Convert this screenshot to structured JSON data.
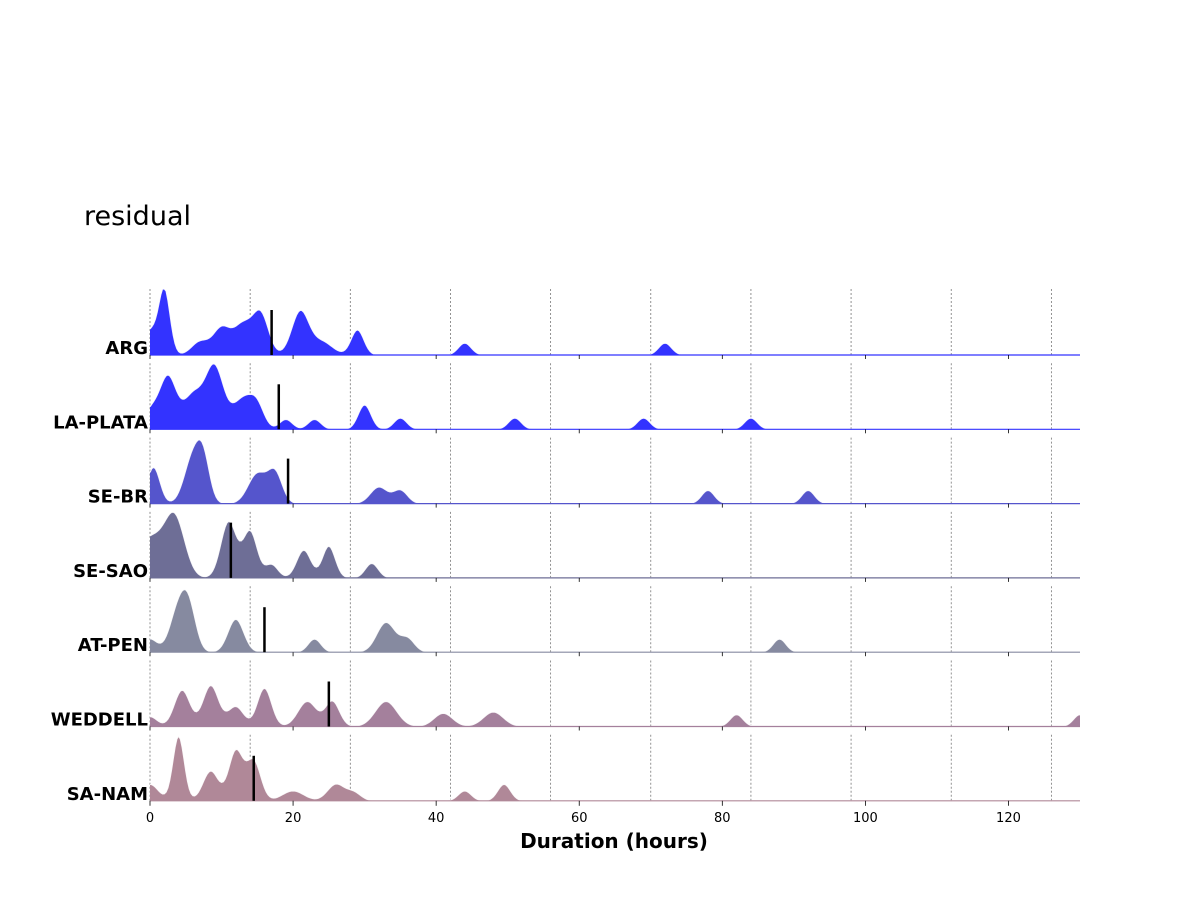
{
  "chart_data": {
    "type": "area",
    "subtype": "ridgeline",
    "title": "residual",
    "xlabel": "Duration (hours)",
    "ylabel": "",
    "xlim": [
      0,
      130
    ],
    "xticks": [
      0,
      20,
      40,
      60,
      80,
      100,
      120
    ],
    "grid": {
      "x_dashed_lines": [
        0,
        14,
        28,
        42,
        56,
        70,
        84,
        98,
        112,
        126
      ]
    },
    "series": [
      {
        "name": "ARG",
        "color": "#3333ff",
        "median": 17,
        "peaks": [
          [
            0,
            0.35,
            0.9
          ],
          [
            2,
            1.0,
            0.8
          ],
          [
            7,
            0.2,
            1.2
          ],
          [
            10,
            0.4,
            1.2
          ],
          [
            13,
            0.45,
            1.3
          ],
          [
            15.5,
            0.6,
            1.1
          ],
          [
            21,
            0.65,
            1.2
          ],
          [
            24,
            0.2,
            1.5
          ],
          [
            29,
            0.38,
            0.9
          ],
          [
            44,
            0.18,
            0.9
          ],
          [
            72,
            0.18,
            0.9
          ]
        ]
      },
      {
        "name": "LA-PLATA",
        "color": "#3333ff",
        "median": 18,
        "peaks": [
          [
            0,
            0.25,
            1.0
          ],
          [
            2.5,
            0.8,
            1.2
          ],
          [
            6,
            0.5,
            1.3
          ],
          [
            9,
            0.95,
            1.3
          ],
          [
            13,
            0.45,
            1.4
          ],
          [
            15,
            0.3,
            1.0
          ],
          [
            19,
            0.15,
            0.9
          ],
          [
            23,
            0.15,
            0.9
          ],
          [
            30,
            0.37,
            0.9
          ],
          [
            35,
            0.17,
            0.9
          ],
          [
            51,
            0.17,
            0.9
          ],
          [
            69,
            0.17,
            0.9
          ],
          [
            84,
            0.17,
            0.9
          ]
        ]
      },
      {
        "name": "SE-BR",
        "color": "#5555cc",
        "median": 19.3,
        "peaks": [
          [
            0.5,
            0.55,
            0.9
          ],
          [
            6,
            0.7,
            1.2
          ],
          [
            7.5,
            0.55,
            0.9
          ],
          [
            15,
            0.45,
            1.3
          ],
          [
            17.5,
            0.45,
            1.0
          ],
          [
            32,
            0.25,
            1.2
          ],
          [
            35,
            0.2,
            1.0
          ],
          [
            78,
            0.2,
            0.9
          ],
          [
            92,
            0.2,
            0.9
          ]
        ]
      },
      {
        "name": "SE-SAO",
        "color": "#6e6e96",
        "median": 11.3,
        "peaks": [
          [
            0,
            0.6,
            2.0
          ],
          [
            3.5,
            0.85,
            1.4
          ],
          [
            11,
            0.85,
            1.1
          ],
          [
            14,
            0.7,
            1.0
          ],
          [
            17,
            0.2,
            0.9
          ],
          [
            21.5,
            0.42,
            1.0
          ],
          [
            25,
            0.48,
            0.9
          ],
          [
            31,
            0.22,
            0.9
          ]
        ]
      },
      {
        "name": "AT-PEN",
        "color": "#868aa0",
        "median": 16,
        "peaks": [
          [
            0,
            0.2,
            1.0
          ],
          [
            4,
            0.65,
            1.2
          ],
          [
            5.5,
            0.55,
            1.0
          ],
          [
            12,
            0.5,
            1.1
          ],
          [
            23,
            0.2,
            0.9
          ],
          [
            33,
            0.45,
            1.3
          ],
          [
            36,
            0.2,
            1.0
          ],
          [
            88,
            0.2,
            0.9
          ]
        ]
      },
      {
        "name": "WEDDELL",
        "color": "#a4809c",
        "median": 25,
        "peaks": [
          [
            0,
            0.15,
            1.0
          ],
          [
            4.5,
            0.55,
            1.1
          ],
          [
            8.5,
            0.62,
            1.1
          ],
          [
            12,
            0.3,
            1.1
          ],
          [
            16,
            0.58,
            1.0
          ],
          [
            22,
            0.38,
            1.3
          ],
          [
            25.5,
            0.38,
            1.0
          ],
          [
            33,
            0.38,
            1.5
          ],
          [
            41,
            0.2,
            1.3
          ],
          [
            48,
            0.22,
            1.4
          ],
          [
            82,
            0.18,
            0.9
          ],
          [
            130,
            0.18,
            0.9
          ]
        ]
      },
      {
        "name": "SA-NAM",
        "color": "#b08898",
        "median": 14.5,
        "peaks": [
          [
            0,
            0.25,
            1.2
          ],
          [
            4,
            0.98,
            0.8
          ],
          [
            8.5,
            0.45,
            1.1
          ],
          [
            12,
            0.75,
            1.0
          ],
          [
            14.5,
            0.6,
            1.0
          ],
          [
            20,
            0.15,
            1.5
          ],
          [
            26,
            0.25,
            1.2
          ],
          [
            28.5,
            0.12,
            1.0
          ],
          [
            44,
            0.15,
            0.9
          ],
          [
            49.5,
            0.25,
            0.9
          ]
        ]
      }
    ]
  }
}
